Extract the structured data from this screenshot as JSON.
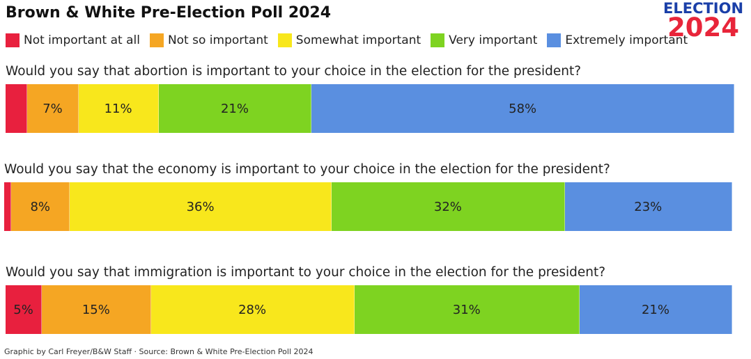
{
  "title": "Brown & White Pre-Election Poll 2024",
  "logo": {
    "line1": "ELECTION",
    "line2": "2024"
  },
  "footer": "Graphic by Carl Freyer/B&W Staff · Source: Brown & White Pre-Election Poll 2024",
  "chart_data": {
    "type": "bar",
    "orientation": "horizontal-stacked-100",
    "title": "Brown & White Pre-Election Poll 2024",
    "legend_position": "top",
    "series": [
      {
        "name": "Not important at all",
        "color": "#e8203e"
      },
      {
        "name": "Not so important",
        "color": "#f5a623"
      },
      {
        "name": "Somewhat important",
        "color": "#f8e71c"
      },
      {
        "name": "Very important",
        "color": "#7ed321"
      },
      {
        "name": "Extremely important",
        "color": "#5a8fe0"
      }
    ],
    "questions": [
      {
        "label": "Would you say that abortion is important to your choice in the election for the president?",
        "values": [
          3,
          7,
          11,
          21,
          58
        ],
        "labels": [
          "",
          "7%",
          "11%",
          "21%",
          "58%"
        ]
      },
      {
        "label": "Would you say that the economy is important to your choice in the election for the president?",
        "values": [
          1,
          8,
          36,
          32,
          23
        ],
        "labels": [
          "",
          "8%",
          "36%",
          "32%",
          "23%"
        ]
      },
      {
        "label": "Would you say that immigration is important to your choice in the election for the president?",
        "values": [
          5,
          15,
          28,
          31,
          21
        ],
        "labels": [
          "5%",
          "15%",
          "28%",
          "31%",
          "21%"
        ]
      }
    ]
  }
}
